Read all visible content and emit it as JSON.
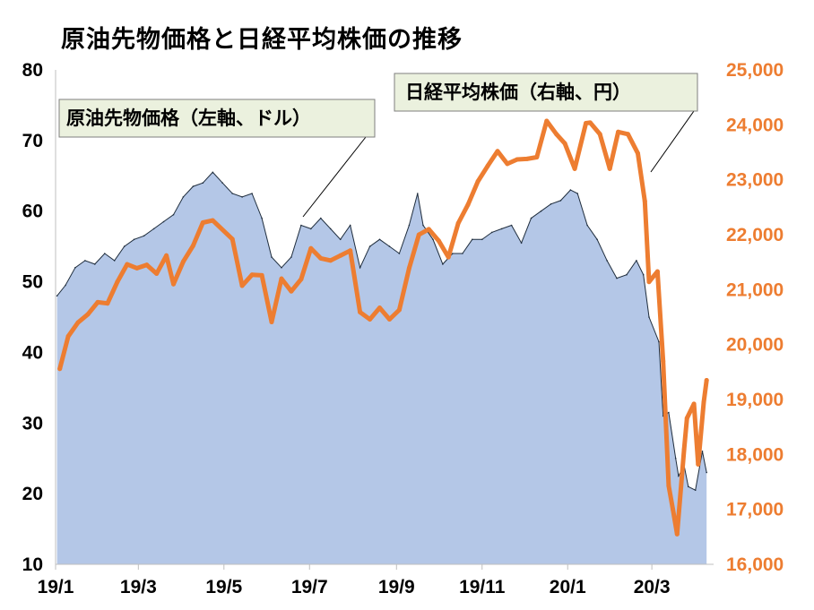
{
  "title": "原油先物価格と日経平均株価の推移",
  "chart_data": {
    "type": "area",
    "title": "原油先物価格と日経平均株価の推移",
    "x_tick_labels": [
      "19/1",
      "19/3",
      "19/5",
      "19/7",
      "19/9",
      "19/11",
      "20/1",
      "20/3"
    ],
    "x_range": [
      "2019-01",
      "2020-04"
    ],
    "grid": false,
    "y_left": {
      "ticks": [
        10,
        20,
        30,
        40,
        50,
        60,
        70,
        80
      ],
      "ylim": [
        10,
        80
      ]
    },
    "y_right": {
      "ticks": [
        "16,000",
        "17,000",
        "18,000",
        "19,000",
        "20,000",
        "21,000",
        "22,000",
        "23,000",
        "24,000",
        "25,000"
      ],
      "ylim": [
        16000,
        25000
      ]
    },
    "series": [
      {
        "name": "原油先物価格（左軸、ドル）",
        "axis": "left",
        "style": "area",
        "color": "#B4C7E7",
        "edge_color": "#1F2D3D",
        "points": [
          [
            "2019-01-02",
            48
          ],
          [
            "2019-01-08",
            49.5
          ],
          [
            "2019-01-15",
            52
          ],
          [
            "2019-01-22",
            53
          ],
          [
            "2019-01-29",
            52.5
          ],
          [
            "2019-02-05",
            54
          ],
          [
            "2019-02-12",
            53
          ],
          [
            "2019-02-19",
            55
          ],
          [
            "2019-02-26",
            56
          ],
          [
            "2019-03-05",
            56.5
          ],
          [
            "2019-03-12",
            57.5
          ],
          [
            "2019-03-19",
            58.5
          ],
          [
            "2019-03-26",
            59.5
          ],
          [
            "2019-04-02",
            62
          ],
          [
            "2019-04-09",
            63.5
          ],
          [
            "2019-04-16",
            64
          ],
          [
            "2019-04-23",
            65.5
          ],
          [
            "2019-04-30",
            64
          ],
          [
            "2019-05-07",
            62.5
          ],
          [
            "2019-05-14",
            62
          ],
          [
            "2019-05-21",
            62.5
          ],
          [
            "2019-05-28",
            59
          ],
          [
            "2019-06-04",
            53.5
          ],
          [
            "2019-06-11",
            52
          ],
          [
            "2019-06-18",
            53.5
          ],
          [
            "2019-06-25",
            58
          ],
          [
            "2019-07-02",
            57.5
          ],
          [
            "2019-07-09",
            59
          ],
          [
            "2019-07-16",
            57.5
          ],
          [
            "2019-07-23",
            56
          ],
          [
            "2019-07-30",
            58
          ],
          [
            "2019-08-06",
            52
          ],
          [
            "2019-08-13",
            55
          ],
          [
            "2019-08-20",
            56
          ],
          [
            "2019-08-27",
            55
          ],
          [
            "2019-09-03",
            54
          ],
          [
            "2019-09-10",
            58
          ],
          [
            "2019-09-16",
            62.5
          ],
          [
            "2019-09-20",
            58
          ],
          [
            "2019-09-27",
            56
          ],
          [
            "2019-10-04",
            52.5
          ],
          [
            "2019-10-11",
            54
          ],
          [
            "2019-10-18",
            54
          ],
          [
            "2019-10-25",
            56
          ],
          [
            "2019-11-01",
            56
          ],
          [
            "2019-11-08",
            57
          ],
          [
            "2019-11-15",
            57.5
          ],
          [
            "2019-11-22",
            58
          ],
          [
            "2019-11-29",
            55.5
          ],
          [
            "2019-12-06",
            59
          ],
          [
            "2019-12-13",
            60
          ],
          [
            "2019-12-20",
            61
          ],
          [
            "2019-12-27",
            61.5
          ],
          [
            "2020-01-03",
            63
          ],
          [
            "2020-01-08",
            62.5
          ],
          [
            "2020-01-15",
            58
          ],
          [
            "2020-01-22",
            56
          ],
          [
            "2020-01-29",
            53
          ],
          [
            "2020-02-05",
            50.5
          ],
          [
            "2020-02-12",
            51
          ],
          [
            "2020-02-19",
            53
          ],
          [
            "2020-02-24",
            51
          ],
          [
            "2020-02-28",
            45
          ],
          [
            "2020-03-06",
            41.5
          ],
          [
            "2020-03-09",
            31
          ],
          [
            "2020-03-13",
            31.5
          ],
          [
            "2020-03-18",
            25
          ],
          [
            "2020-03-20",
            22.5
          ],
          [
            "2020-03-24",
            24
          ],
          [
            "2020-03-27",
            21
          ],
          [
            "2020-04-01",
            20.5
          ],
          [
            "2020-04-06",
            26
          ],
          [
            "2020-04-09",
            23
          ]
        ]
      },
      {
        "name": "日経平均株価（右軸、円）",
        "axis": "right",
        "style": "line",
        "color": "#ED7D31",
        "points": [
          [
            "2019-01-04",
            19560
          ],
          [
            "2019-01-10",
            20150
          ],
          [
            "2019-01-17",
            20400
          ],
          [
            "2019-01-24",
            20550
          ],
          [
            "2019-01-31",
            20770
          ],
          [
            "2019-02-07",
            20750
          ],
          [
            "2019-02-14",
            21140
          ],
          [
            "2019-02-21",
            21460
          ],
          [
            "2019-02-28",
            21390
          ],
          [
            "2019-03-07",
            21450
          ],
          [
            "2019-03-14",
            21290
          ],
          [
            "2019-03-21",
            21620
          ],
          [
            "2019-03-26",
            21100
          ],
          [
            "2019-04-02",
            21510
          ],
          [
            "2019-04-09",
            21800
          ],
          [
            "2019-04-16",
            22220
          ],
          [
            "2019-04-23",
            22260
          ],
          [
            "2019-05-07",
            21920
          ],
          [
            "2019-05-14",
            21070
          ],
          [
            "2019-05-21",
            21270
          ],
          [
            "2019-05-28",
            21260
          ],
          [
            "2019-06-04",
            20410
          ],
          [
            "2019-06-11",
            21200
          ],
          [
            "2019-06-18",
            20970
          ],
          [
            "2019-06-25",
            21190
          ],
          [
            "2019-07-02",
            21750
          ],
          [
            "2019-07-09",
            21570
          ],
          [
            "2019-07-16",
            21530
          ],
          [
            "2019-07-23",
            21620
          ],
          [
            "2019-07-30",
            21710
          ],
          [
            "2019-08-06",
            20590
          ],
          [
            "2019-08-13",
            20460
          ],
          [
            "2019-08-20",
            20670
          ],
          [
            "2019-08-27",
            20460
          ],
          [
            "2019-09-03",
            20630
          ],
          [
            "2019-09-10",
            21390
          ],
          [
            "2019-09-17",
            22000
          ],
          [
            "2019-09-24",
            22100
          ],
          [
            "2019-10-01",
            21890
          ],
          [
            "2019-10-08",
            21590
          ],
          [
            "2019-10-15",
            22210
          ],
          [
            "2019-10-22",
            22550
          ],
          [
            "2019-10-29",
            22970
          ],
          [
            "2019-11-05",
            23250
          ],
          [
            "2019-11-12",
            23520
          ],
          [
            "2019-11-19",
            23290
          ],
          [
            "2019-11-26",
            23370
          ],
          [
            "2019-12-03",
            23380
          ],
          [
            "2019-12-10",
            23410
          ],
          [
            "2019-12-17",
            24070
          ],
          [
            "2019-12-24",
            23830
          ],
          [
            "2019-12-30",
            23660
          ],
          [
            "2020-01-06",
            23200
          ],
          [
            "2020-01-14",
            24030
          ],
          [
            "2020-01-17",
            24040
          ],
          [
            "2020-01-24",
            23830
          ],
          [
            "2020-01-31",
            23200
          ],
          [
            "2020-02-06",
            23870
          ],
          [
            "2020-02-13",
            23830
          ],
          [
            "2020-02-20",
            23480
          ],
          [
            "2020-02-25",
            22610
          ],
          [
            "2020-02-28",
            21140
          ],
          [
            "2020-03-05",
            21330
          ],
          [
            "2020-03-09",
            19700
          ],
          [
            "2020-03-13",
            17430
          ],
          [
            "2020-03-16",
            17000
          ],
          [
            "2020-03-19",
            16550
          ],
          [
            "2020-03-24",
            18090
          ],
          [
            "2020-03-26",
            18660
          ],
          [
            "2020-03-31",
            18920
          ],
          [
            "2020-04-03",
            17820
          ],
          [
            "2020-04-07",
            18950
          ],
          [
            "2020-04-09",
            19350
          ]
        ]
      }
    ],
    "annotations": [
      {
        "text": "原油先物価格（左軸、ドル）",
        "series": 0
      },
      {
        "text": "日経平均株価（右軸、円）",
        "series": 1
      }
    ]
  }
}
